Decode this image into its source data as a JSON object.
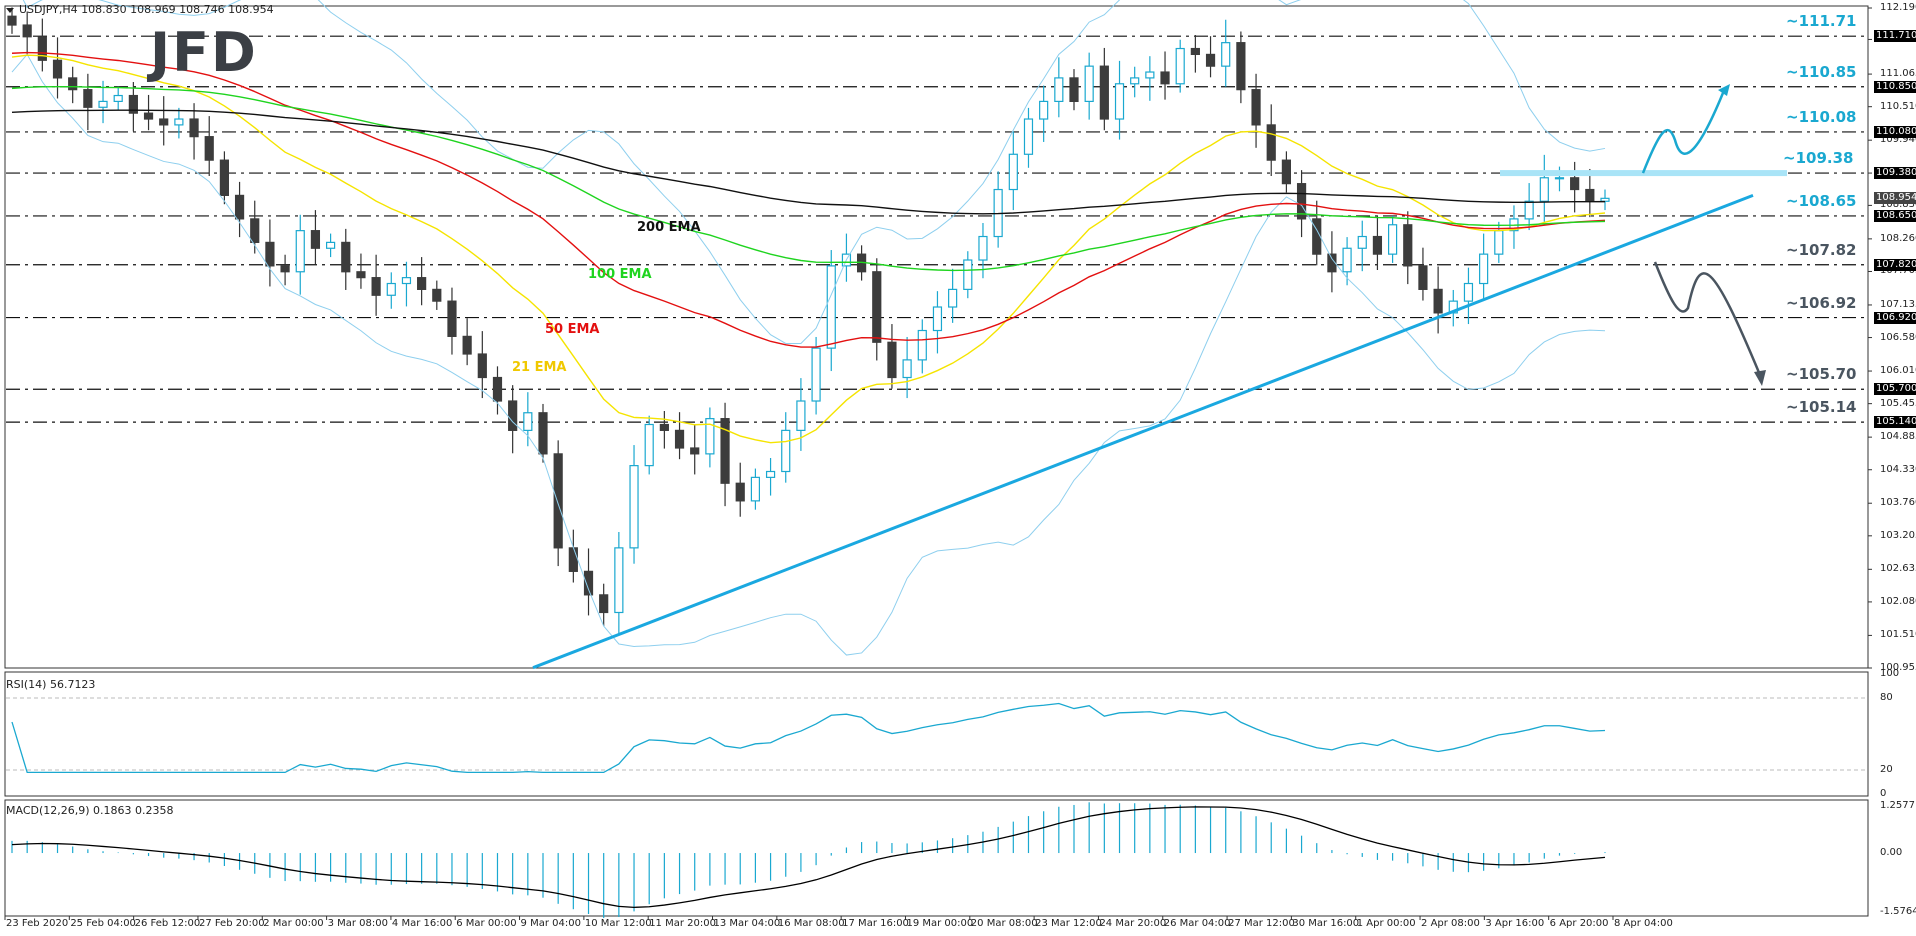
{
  "header": {
    "symbol_line": "USDJPY,H4  108.830 108.969 108.746 108.954"
  },
  "logo": "JFD",
  "rsi_label": "RSI(14) 56.7123",
  "macd_label": "MACD(12,26,9) 0.1863 0.2358",
  "colors": {
    "bull": "#1aa8d0",
    "bear": "#3c3c3c",
    "ema21": "#f5e400",
    "ema50": "#e31010",
    "ema100": "#1fd41f",
    "ema200": "#111111",
    "bollinger": "#8ecfee",
    "trendline": "#1aa8e0",
    "level_up": "#1aa8d0",
    "level_down": "#4a5560",
    "rsi": "#1aa8d0",
    "macd_hist": "#1aa8d0",
    "macd_signal": "#000000"
  },
  "price_axis": {
    "ticks": [
      "112.190",
      "111.655",
      "111.065",
      "110.510",
      "109.940",
      "109.380",
      "108.830",
      "108.260",
      "107.705",
      "107.135",
      "106.580",
      "106.010",
      "105.455",
      "104.885",
      "104.330",
      "103.760",
      "103.205",
      "102.635",
      "102.080",
      "101.510",
      "100.955"
    ],
    "highlight": [
      {
        "label": "111.710",
        "style": "black"
      },
      {
        "label": "110.850",
        "style": "black"
      },
      {
        "label": "110.080",
        "style": "black"
      },
      {
        "label": "109.380",
        "style": "black"
      },
      {
        "label": "108.954",
        "style": "grey"
      },
      {
        "label": "108.650",
        "style": "black"
      },
      {
        "label": "107.820",
        "style": "black"
      },
      {
        "label": "106.920",
        "style": "black"
      },
      {
        "label": "105.700",
        "style": "black"
      },
      {
        "label": "105.140",
        "style": "black"
      }
    ]
  },
  "rsi_axis": [
    "100",
    "80",
    "20",
    "0"
  ],
  "macd_axis": [
    "1.2577",
    "0.00",
    "-1.5764"
  ],
  "levels": [
    {
      "label": "~111.71",
      "price": 111.71,
      "color": "up"
    },
    {
      "label": "~110.85",
      "price": 110.85,
      "color": "up"
    },
    {
      "label": "~110.08",
      "price": 110.08,
      "color": "up"
    },
    {
      "label": "~109.38",
      "price": 109.38,
      "color": "up"
    },
    {
      "label": "~108.65",
      "price": 108.65,
      "color": "up"
    },
    {
      "label": "~107.82",
      "price": 107.82,
      "color": "down"
    },
    {
      "label": "~106.92",
      "price": 106.92,
      "color": "down"
    },
    {
      "label": "~105.70",
      "price": 105.7,
      "color": "down"
    },
    {
      "label": "~105.14",
      "price": 105.14,
      "color": "down"
    }
  ],
  "ema_labels": {
    "ema200": "200 EMA",
    "ema100": "100 EMA",
    "ema50": "50 EMA",
    "ema21": "21 EMA"
  },
  "time_axis": [
    "23 Feb 2020",
    "25 Feb 04:00",
    "26 Feb 12:00",
    "27 Feb 20:00",
    "2 Mar 00:00",
    "3 Mar 08:00",
    "4 Mar 16:00",
    "6 Mar 00:00",
    "9 Mar 04:00",
    "10 Mar 12:00",
    "11 Mar 20:00",
    "13 Mar 04:00",
    "16 Mar 08:00",
    "17 Mar 16:00",
    "19 Mar 00:00",
    "20 Mar 08:00",
    "23 Mar 12:00",
    "24 Mar 20:00",
    "26 Mar 04:00",
    "27 Mar 12:00",
    "30 Mar 16:00",
    "1 Apr 00:00",
    "2 Apr 08:00",
    "3 Apr 16:00",
    "6 Apr 20:00",
    "8 Apr 04:00"
  ],
  "chart_data": {
    "type": "candlestick",
    "title": "USDJPY,H4",
    "ohlc_last": {
      "open": 108.83,
      "high": 108.969,
      "low": 108.746,
      "close": 108.954
    },
    "ylim": [
      100.955,
      112.19
    ],
    "closes": [
      111.9,
      111.7,
      111.3,
      111.0,
      110.8,
      110.5,
      110.6,
      110.7,
      110.4,
      110.3,
      110.2,
      110.3,
      110.0,
      109.6,
      109.0,
      108.6,
      108.2,
      107.8,
      107.7,
      108.4,
      108.1,
      108.2,
      107.7,
      107.6,
      107.3,
      107.5,
      107.6,
      107.4,
      107.2,
      106.6,
      106.3,
      105.9,
      105.5,
      105.0,
      105.3,
      104.6,
      103.0,
      102.6,
      102.2,
      101.9,
      103.0,
      104.4,
      105.1,
      105.0,
      104.7,
      104.6,
      105.2,
      104.1,
      103.8,
      104.2,
      104.3,
      105.0,
      105.5,
      106.4,
      107.8,
      108.0,
      107.7,
      106.5,
      105.9,
      106.2,
      106.7,
      107.1,
      107.4,
      107.9,
      108.3,
      109.1,
      109.7,
      110.3,
      110.6,
      111.0,
      110.6,
      111.2,
      110.3,
      110.9,
      111.0,
      111.1,
      110.9,
      111.5,
      111.4,
      111.2,
      111.6,
      110.8,
      110.2,
      109.6,
      109.2,
      108.6,
      108.0,
      107.7,
      108.1,
      108.3,
      108.0,
      108.5,
      107.8,
      107.4,
      107.0,
      107.2,
      107.5,
      108.0,
      108.4,
      108.6,
      108.9,
      109.3,
      109.3,
      109.1,
      108.9,
      108.95
    ],
    "series": [
      {
        "name": "RSI(14)",
        "last": 56.7123,
        "range": [
          0,
          100
        ],
        "levels": [
          20,
          80
        ]
      },
      {
        "name": "MACD(12,26,9)",
        "main": 0.1863,
        "signal": 0.2358,
        "range": [
          -1.5764,
          1.2577
        ]
      }
    ],
    "trendline": {
      "from": {
        "x": "9 Mar 04:00",
        "price": 100.96
      },
      "to": {
        "x": "8 Apr",
        "price": 109.0
      }
    },
    "scenarios": [
      {
        "type": "bullish",
        "path": "bounce at 109.38 toward 110.85"
      },
      {
        "type": "bearish",
        "path": "break below 107.82 toward 106.92 then 105.70"
      }
    ]
  }
}
